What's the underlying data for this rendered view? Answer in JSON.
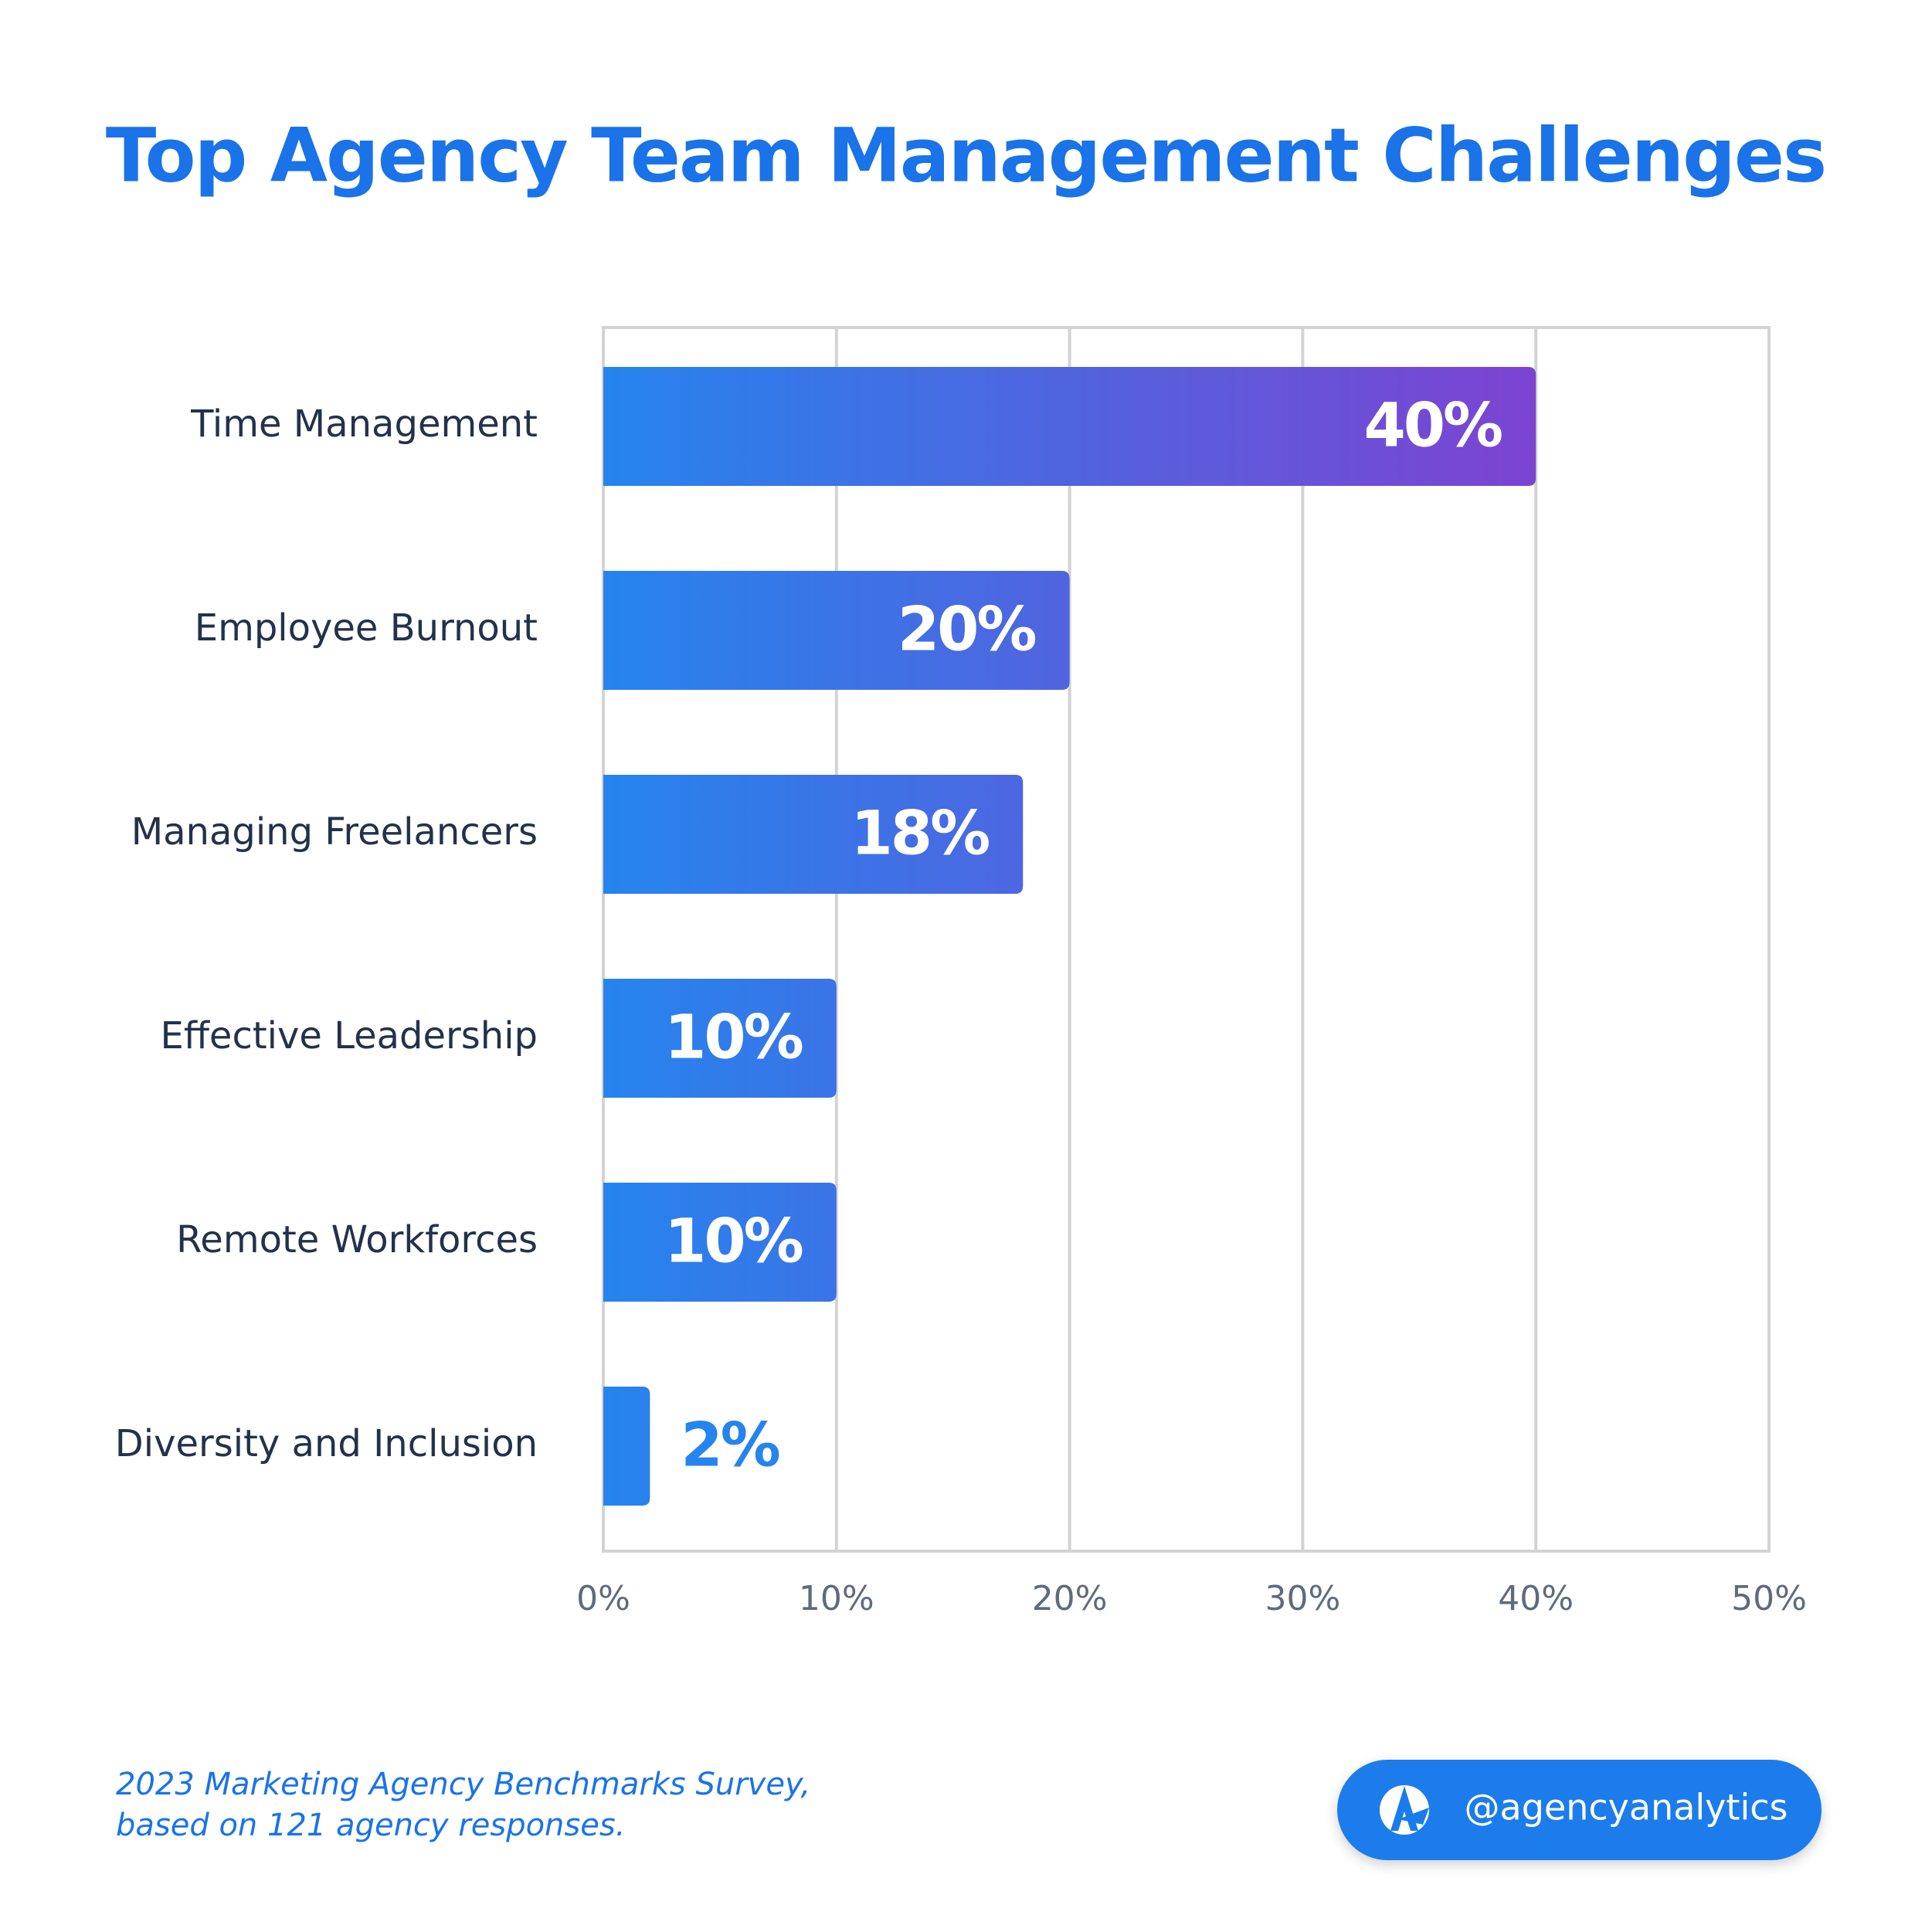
{
  "chart_data": {
    "type": "hbar",
    "title": "Top Agency Team Management Challenges",
    "categories": [
      "Time Management",
      "Employee Burnout",
      "Managing Freelancers",
      "Effective Leadership",
      "Remote Workforces",
      "Diversity and Inclusion"
    ],
    "values": [
      40,
      20,
      18,
      10,
      10,
      2
    ],
    "value_labels": [
      "40%",
      "20%",
      "18%",
      "10%",
      "10%",
      "2%"
    ],
    "xlim": [
      0,
      50
    ],
    "xticks": [
      {
        "value": 0,
        "label": "0%"
      },
      {
        "value": 10,
        "label": "10%"
      },
      {
        "value": 20,
        "label": "20%"
      },
      {
        "value": 30,
        "label": "30%"
      },
      {
        "value": 40,
        "label": "40%"
      },
      {
        "value": 50,
        "label": "50%"
      }
    ],
    "grid": true,
    "color": [
      "#2584ee",
      "#7d43d1"
    ],
    "footnote": [
      "2023 Marketing Agency Benchmarks Survey,",
      "based on 121 agency responses."
    ],
    "handle": "@agencyanalytics"
  }
}
